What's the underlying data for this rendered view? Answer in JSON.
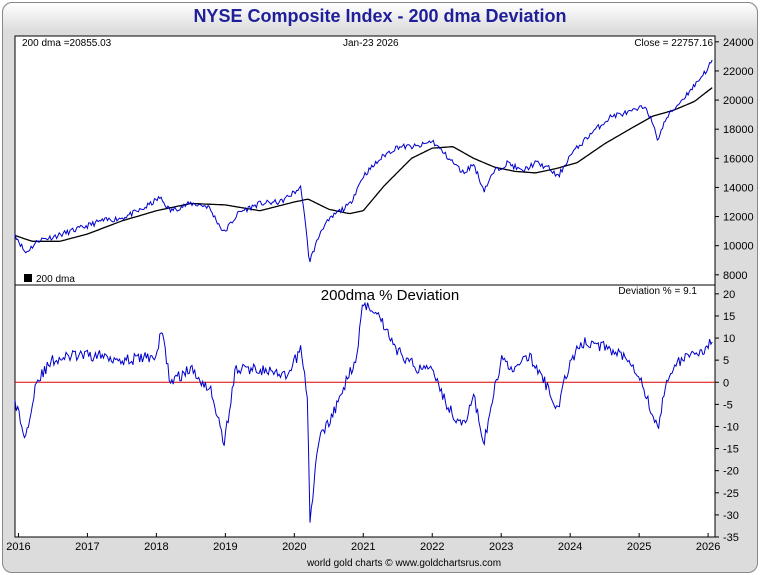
{
  "title": "NYSE Composite Index - 200 dma Deviation",
  "footer": "world gold charts © www.goldchartsrus.com",
  "colors": {
    "price": "#0000cc",
    "dma": "#000000",
    "deviation": "#0000cc",
    "zero_line": "#dd0000"
  },
  "chart_data": [
    {
      "type": "line",
      "panel": "price",
      "date_label": "Jan-23  2026",
      "dma_label": "200 dma =20855.03",
      "close_label": "Close = 22757.16",
      "legend": "200 dma",
      "x_range": [
        2015.95,
        2026.1
      ],
      "ylim": [
        7300,
        24400
      ],
      "yticks": [
        8000,
        10000,
        12000,
        14000,
        16000,
        18000,
        20000,
        22000,
        24000
      ],
      "xticks": [
        "2016",
        "2017",
        "2018",
        "2019",
        "2020",
        "2021",
        "2022",
        "2023",
        "2024",
        "2025",
        "2026"
      ],
      "series": [
        {
          "name": "NYSE Composite",
          "x": [
            2015.95,
            2016.1,
            2016.3,
            2016.5,
            2016.7,
            2016.9,
            2017.2,
            2017.5,
            2017.8,
            2018.05,
            2018.2,
            2018.5,
            2018.75,
            2018.98,
            2019.2,
            2019.5,
            2019.8,
            2020.1,
            2020.22,
            2020.4,
            2020.6,
            2020.8,
            2021.0,
            2021.3,
            2021.5,
            2021.8,
            2022.0,
            2022.2,
            2022.45,
            2022.6,
            2022.75,
            2022.9,
            2023.1,
            2023.3,
            2023.5,
            2023.7,
            2023.82,
            2024.0,
            2024.3,
            2024.6,
            2024.9,
            2025.1,
            2025.27,
            2025.4,
            2025.6,
            2025.8,
            2026.0,
            2026.06
          ],
          "values": [
            10800,
            9500,
            10400,
            10600,
            10900,
            11200,
            11700,
            11900,
            12500,
            13300,
            12400,
            12900,
            12700,
            10900,
            12300,
            12900,
            13000,
            14000,
            8900,
            11200,
            12200,
            12800,
            14800,
            16200,
            16800,
            16800,
            17200,
            16200,
            15000,
            15600,
            13800,
            15100,
            15700,
            15100,
            15700,
            15300,
            14700,
            16200,
            17700,
            18900,
            19200,
            19600,
            17300,
            18800,
            19900,
            21000,
            22200,
            22757
          ]
        },
        {
          "name": "200 dma",
          "x": [
            2015.95,
            2016.2,
            2016.6,
            2017.0,
            2017.5,
            2018.0,
            2018.5,
            2019.0,
            2019.5,
            2020.0,
            2020.2,
            2020.5,
            2020.8,
            2021.0,
            2021.3,
            2021.7,
            2022.0,
            2022.3,
            2022.6,
            2022.9,
            2023.2,
            2023.5,
            2023.8,
            2024.1,
            2024.5,
            2024.9,
            2025.2,
            2025.5,
            2025.8,
            2026.06
          ],
          "values": [
            10700,
            10300,
            10300,
            10800,
            11700,
            12400,
            12900,
            12800,
            12400,
            13000,
            13200,
            12500,
            12200,
            12400,
            14100,
            16000,
            16700,
            16800,
            16000,
            15400,
            15100,
            15000,
            15300,
            15700,
            17000,
            18100,
            18900,
            19300,
            19900,
            20855
          ]
        }
      ]
    },
    {
      "type": "line",
      "panel": "deviation",
      "title": "200dma  %  Deviation",
      "deviation_label": "Deviation % = 9.1",
      "x_range": [
        2015.95,
        2026.1
      ],
      "ylim": [
        -35,
        22
      ],
      "yticks": [
        -35,
        -30,
        -25,
        -20,
        -15,
        -10,
        -5,
        0,
        5,
        10,
        15,
        20
      ],
      "xticks": [
        "2016",
        "2017",
        "2018",
        "2019",
        "2020",
        "2021",
        "2022",
        "2023",
        "2024",
        "2025",
        "2026"
      ],
      "series": [
        {
          "name": "Deviation %",
          "x": [
            2015.95,
            2016.1,
            2016.25,
            2016.5,
            2016.8,
            2017.2,
            2017.6,
            2018.0,
            2018.08,
            2018.2,
            2018.5,
            2018.8,
            2018.98,
            2019.15,
            2019.5,
            2019.9,
            2020.1,
            2020.2,
            2020.22,
            2020.35,
            2020.6,
            2020.9,
            2021.0,
            2021.2,
            2021.5,
            2021.8,
            2022.0,
            2022.2,
            2022.45,
            2022.6,
            2022.75,
            2022.9,
            2023.0,
            2023.2,
            2023.4,
            2023.6,
            2023.82,
            2024.0,
            2024.2,
            2024.5,
            2024.8,
            2025.0,
            2025.27,
            2025.4,
            2025.6,
            2025.8,
            2026.06
          ],
          "values": [
            -4,
            -13,
            0,
            5,
            6,
            6,
            5,
            6,
            12,
            0,
            3,
            -2,
            -14,
            3,
            3,
            1,
            8,
            -5,
            -33,
            -13,
            -6,
            6,
            18,
            16,
            7,
            3,
            4,
            -5,
            -10,
            -3,
            -14,
            -2,
            5,
            3,
            6,
            1,
            -6,
            5,
            9,
            8,
            6,
            2,
            -11,
            1,
            5,
            6,
            9.1
          ]
        },
        {
          "name": "Zero line",
          "x": [
            2015.95,
            2026.1
          ],
          "values": [
            0,
            0
          ]
        }
      ]
    }
  ]
}
